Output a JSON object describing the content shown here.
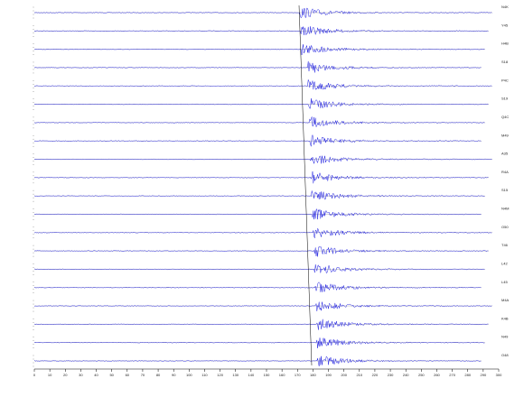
{
  "chart_data": {
    "type": "seismogram",
    "traces": [
      "N4K",
      "Y45",
      "H4B",
      "S18",
      "P4C",
      "S19",
      "Q4C",
      "M49",
      "A35",
      "R4A",
      "S15",
      "N4M",
      "O50",
      "T46",
      "L42",
      "L45",
      "M4A",
      "K4B",
      "N49",
      "O48"
    ],
    "xlim": [
      0,
      300
    ],
    "xticks": [
      0,
      10,
      20,
      30,
      40,
      50,
      60,
      70,
      80,
      90,
      100,
      110,
      120,
      130,
      140,
      150,
      160,
      170,
      180,
      190,
      200,
      210,
      220,
      230,
      240,
      250,
      260,
      270,
      280,
      290,
      300
    ]
  }
}
